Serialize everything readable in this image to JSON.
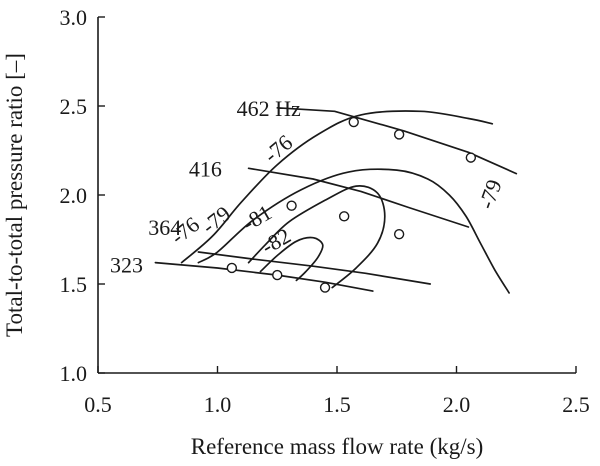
{
  "chart_data": {
    "type": "line",
    "title": "",
    "xlabel": "Reference mass flow rate (kg/s)",
    "ylabel": "Total-to-total pressure ratio [–]",
    "xlim": [
      0.5,
      2.5
    ],
    "ylim": [
      1.0,
      3.0
    ],
    "x_ticks": [
      0.5,
      1.0,
      1.5,
      2.0,
      2.5
    ],
    "x_tick_labels": [
      "0.5",
      "1.0",
      "1.5",
      "2.0",
      "2.5"
    ],
    "y_ticks": [
      1.0,
      1.5,
      2.0,
      2.5,
      3.0
    ],
    "y_tick_labels": [
      "1.0",
      "1.5",
      "2.0",
      "2.5",
      "3.0"
    ],
    "grid": false,
    "series": [
      {
        "label": "462 Hz",
        "kind": "speed-line",
        "x": [
          1.25,
          1.49,
          1.78,
          2.05,
          2.25
        ],
        "y": [
          2.49,
          2.47,
          2.36,
          2.24,
          2.12
        ]
      },
      {
        "label": "416",
        "kind": "speed-line",
        "x": [
          1.13,
          1.4,
          1.6,
          1.8,
          2.05
        ],
        "y": [
          2.15,
          2.09,
          2.02,
          1.93,
          1.82
        ]
      },
      {
        "label": "364",
        "kind": "speed-line",
        "x": [
          0.92,
          1.15,
          1.4,
          1.62,
          1.89
        ],
        "y": [
          1.68,
          1.64,
          1.6,
          1.56,
          1.5
        ]
      },
      {
        "label": "323",
        "kind": "speed-line",
        "x": [
          0.74,
          1.0,
          1.25,
          1.45,
          1.65
        ],
        "y": [
          1.62,
          1.59,
          1.55,
          1.51,
          1.46
        ]
      },
      {
        "label": "-76",
        "kind": "efficiency-contour",
        "x": [
          0.85,
          0.98,
          1.1,
          1.25,
          1.42,
          1.6,
          1.85,
          2.05,
          2.15
        ],
        "y": [
          1.62,
          1.77,
          1.96,
          2.17,
          2.34,
          2.45,
          2.47,
          2.43,
          2.4
        ]
      },
      {
        "label": "-79",
        "kind": "efficiency-contour",
        "x": [
          0.92,
          1.0,
          1.15,
          1.35,
          1.55,
          1.75,
          1.88,
          1.97,
          2.04,
          2.1,
          2.16,
          2.22
        ],
        "y": [
          1.62,
          1.68,
          1.86,
          2.03,
          2.13,
          2.14,
          2.09,
          2.0,
          1.88,
          1.73,
          1.58,
          1.45
        ]
      },
      {
        "label": "-81",
        "kind": "efficiency-contour",
        "x": [
          1.13,
          1.2,
          1.3,
          1.45,
          1.58,
          1.67,
          1.7,
          1.67,
          1.58,
          1.48
        ],
        "y": [
          1.62,
          1.72,
          1.85,
          1.97,
          2.05,
          2.01,
          1.88,
          1.73,
          1.59,
          1.48
        ]
      },
      {
        "label": "-82",
        "kind": "efficiency-contour",
        "x": [
          1.18,
          1.25,
          1.33,
          1.4,
          1.44,
          1.42,
          1.37,
          1.33
        ],
        "y": [
          1.57,
          1.66,
          1.74,
          1.76,
          1.72,
          1.65,
          1.57,
          1.52
        ]
      }
    ],
    "markers": {
      "x": [
        1.57,
        1.76,
        2.06,
        1.31,
        1.53,
        1.76,
        1.06,
        1.25,
        1.45
      ],
      "y": [
        2.41,
        2.34,
        2.21,
        1.94,
        1.88,
        1.78,
        1.59,
        1.55,
        1.48
      ]
    },
    "speed_labels": [
      {
        "text": "462 Hz",
        "x": 1.08,
        "y": 2.49
      },
      {
        "text": "416",
        "x": 0.88,
        "y": 2.15
      },
      {
        "text": "364",
        "x": 0.71,
        "y": 1.82
      },
      {
        "text": "323",
        "x": 0.55,
        "y": 1.61
      }
    ],
    "contour_labels": [
      {
        "text": "-76",
        "x": 1.26,
        "y": 2.25,
        "angle": -40
      },
      {
        "text": "-76",
        "x": 0.87,
        "y": 1.79,
        "angle": -38
      },
      {
        "text": "-79",
        "x": 1.0,
        "y": 1.85,
        "angle": -38
      },
      {
        "text": "-79",
        "x": 2.15,
        "y": 2.0,
        "angle": -70
      },
      {
        "text": "-81",
        "x": 1.17,
        "y": 1.86,
        "angle": -30
      },
      {
        "text": "-82",
        "x": 1.25,
        "y": 1.73,
        "angle": -30
      }
    ]
  }
}
